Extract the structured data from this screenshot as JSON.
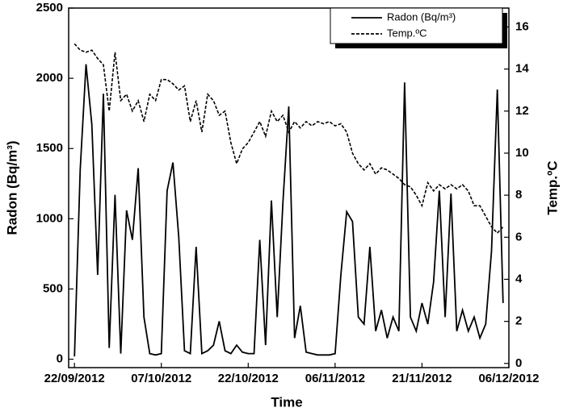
{
  "chart_data": {
    "type": "line",
    "xlabel": "Time",
    "ylabel": "Radon (Bq/m³)",
    "y2label": "Temp.ºC",
    "x": [
      "2012-09-22",
      "2012-09-23",
      "2012-09-24",
      "2012-09-25",
      "2012-09-26",
      "2012-09-27",
      "2012-09-28",
      "2012-09-29",
      "2012-09-30",
      "2012-10-01",
      "2012-10-02",
      "2012-10-03",
      "2012-10-04",
      "2012-10-05",
      "2012-10-06",
      "2012-10-07",
      "2012-10-08",
      "2012-10-09",
      "2012-10-10",
      "2012-10-11",
      "2012-10-12",
      "2012-10-13",
      "2012-10-14",
      "2012-10-15",
      "2012-10-16",
      "2012-10-17",
      "2012-10-18",
      "2012-10-19",
      "2012-10-20",
      "2012-10-21",
      "2012-10-22",
      "2012-10-23",
      "2012-10-24",
      "2012-10-25",
      "2012-10-26",
      "2012-10-27",
      "2012-10-28",
      "2012-10-29",
      "2012-10-30",
      "2012-10-31",
      "2012-11-01",
      "2012-11-02",
      "2012-11-03",
      "2012-11-04",
      "2012-11-05",
      "2012-11-06",
      "2012-11-07",
      "2012-11-08",
      "2012-11-09",
      "2012-11-10",
      "2012-11-11",
      "2012-11-12",
      "2012-11-13",
      "2012-11-14",
      "2012-11-15",
      "2012-11-16",
      "2012-11-17",
      "2012-11-18",
      "2012-11-19",
      "2012-11-20",
      "2012-11-21",
      "2012-11-22",
      "2012-11-23",
      "2012-11-24",
      "2012-11-25",
      "2012-11-26",
      "2012-11-27",
      "2012-11-28",
      "2012-11-29",
      "2012-11-30",
      "2012-12-01",
      "2012-12-02",
      "2012-12-03",
      "2012-12-04",
      "2012-12-05"
    ],
    "series": [
      {
        "name": "Radon (Bq/m³)",
        "color": "#000000",
        "line_style": "solid",
        "values": [
          20,
          1350,
          2100,
          1670,
          600,
          1890,
          80,
          1170,
          40,
          1060,
          850,
          1360,
          300,
          40,
          30,
          40,
          1200,
          1400,
          870,
          60,
          40,
          800,
          40,
          60,
          100,
          270,
          60,
          40,
          100,
          50,
          40,
          40,
          850,
          100,
          1130,
          300,
          1120,
          1800,
          150,
          380,
          50,
          40,
          30,
          30,
          30,
          40,
          600,
          1050,
          980,
          300,
          250,
          800,
          200,
          350,
          150,
          300,
          200,
          1970,
          300,
          200,
          400,
          250,
          550,
          1200,
          300,
          1180,
          200,
          350,
          200,
          300,
          150,
          250,
          770,
          1920,
          400
        ]
      },
      {
        "name": "Temp.ºC",
        "color": "#000000",
        "line_style": "dashed",
        "axis": "y2",
        "values": [
          15.2,
          14.9,
          14.8,
          14.9,
          14.5,
          14.2,
          12,
          14.8,
          12.5,
          12.8,
          12,
          12.5,
          11.5,
          12.8,
          12.5,
          13.5,
          13.5,
          13.3,
          13,
          13.2,
          11.5,
          12.5,
          11,
          12.8,
          12.5,
          11.8,
          12,
          10.5,
          9.5,
          10.2,
          10.5,
          11,
          11.5,
          10.8,
          12,
          11.5,
          11.8,
          11,
          11.5,
          11.2,
          11.5,
          11.3,
          11.5,
          11.4,
          11.5,
          11.3,
          11.4,
          11,
          10,
          9.5,
          9.2,
          9.5,
          9,
          9.3,
          9.2,
          9,
          8.8,
          8.5,
          8.4,
          8,
          7.5,
          8.6,
          8.2,
          8.5,
          8.3,
          8.5,
          8.3,
          8.5,
          8.2,
          7.5,
          7.5,
          7,
          6.5,
          6.2,
          6.5
        ]
      }
    ],
    "xlim": [
      "2012-09-21",
      "2012-12-06"
    ],
    "xticks": [
      {
        "value": "2012-09-22",
        "label": "22/09/2012"
      },
      {
        "value": "2012-10-07",
        "label": "07/10/2012"
      },
      {
        "value": "2012-10-22",
        "label": "22/10/2012"
      },
      {
        "value": "2012-11-06",
        "label": "06/11/2012"
      },
      {
        "value": "2012-11-21",
        "label": "21/11/2012"
      },
      {
        "value": "2012-12-06",
        "label": "06/12/2012"
      }
    ],
    "ylim": [
      -60,
      2500
    ],
    "yticks": [
      0,
      500,
      1000,
      1500,
      2000,
      2500
    ],
    "y2lim": [
      -0.2,
      16.9
    ],
    "y2ticks": [
      0,
      2,
      4,
      6,
      8,
      10,
      12,
      14,
      16
    ],
    "legend": "upper right"
  }
}
